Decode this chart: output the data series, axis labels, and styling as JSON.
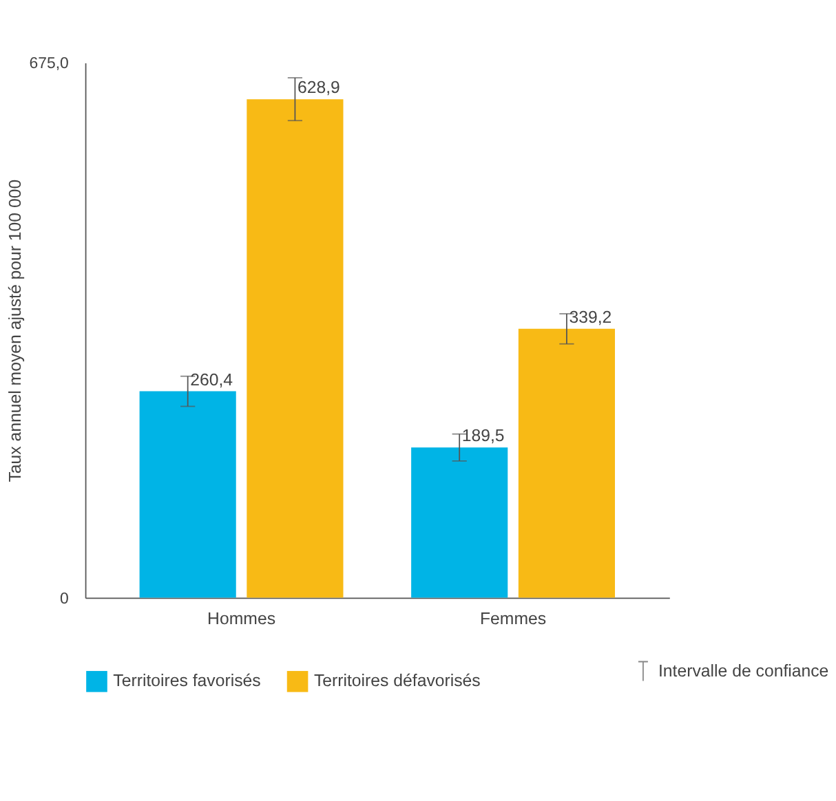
{
  "chart_data": {
    "type": "bar",
    "ylabel": "Taux annuel moyen ajusté pour 100 000",
    "categories": [
      "Hommes",
      "Femmes"
    ],
    "series": [
      {
        "name": "Territoires favorisés",
        "color": "#00b4e6",
        "values": [
          260.4,
          189.5
        ],
        "errors": [
          19,
          17
        ],
        "value_labels": [
          "260,4",
          "189,5"
        ]
      },
      {
        "name": "Territoires défavorisés",
        "color": "#f8ba15",
        "values": [
          628.9,
          339.2
        ],
        "errors": [
          27,
          19
        ],
        "value_labels": [
          "628,9",
          "339,2"
        ]
      }
    ],
    "ylim": [
      0,
      675
    ],
    "yticks": [
      0,
      {
        "value": 675,
        "label": "675,0"
      }
    ],
    "grid": false,
    "legend": "bottom",
    "annotations": [
      "Intervalle de confiance"
    ]
  }
}
